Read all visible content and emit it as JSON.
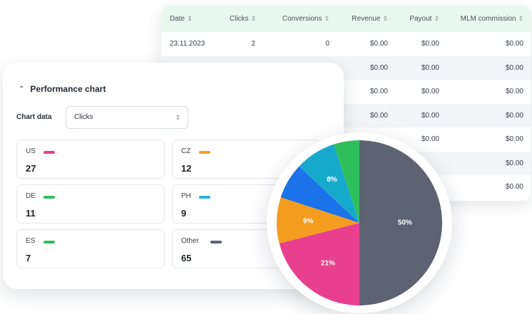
{
  "table": {
    "columns": [
      "Date",
      "Clicks",
      "Conversions",
      "Revenue",
      "Payout",
      "MLM commission"
    ],
    "rows": [
      [
        "23.11.2023",
        "2",
        "0",
        "$0.00",
        "$0.00",
        "$0.00"
      ],
      [
        "",
        "",
        "",
        "$0.00",
        "$0.00",
        "$0.00"
      ],
      [
        "",
        "",
        "",
        "$0.00",
        "$0.00",
        "$0.00"
      ],
      [
        "",
        "",
        "",
        "$0.00",
        "$0.00",
        "$0.00"
      ],
      [
        "",
        "",
        "",
        "",
        "$0.00",
        "$0.00"
      ],
      [
        "",
        "",
        "",
        "",
        "",
        "$0.00"
      ],
      [
        "",
        "",
        "",
        "",
        "",
        "$0.00"
      ]
    ],
    "sort_icon": "sort-updown-icon"
  },
  "performance": {
    "title": "Performance chart",
    "collapse_icon": "chevron-up-icon",
    "chart_data_label": "Chart data",
    "select_value": "Clicks",
    "select_icon": "updown-icon"
  },
  "countries": [
    {
      "name": "US",
      "value": "27",
      "color": "#e8408f"
    },
    {
      "name": "CZ",
      "value": "12",
      "color": "#f39c1f"
    },
    {
      "name": "DE",
      "value": "11",
      "color": "#2fbf5a"
    },
    {
      "name": "PH",
      "value": "9",
      "color": "#2bb1d6"
    },
    {
      "name": "ES",
      "value": "7",
      "color": "#2fbf5a"
    },
    {
      "name": "Other",
      "value": "65",
      "color": "#5e6373"
    }
  ],
  "chart_data": {
    "type": "pie",
    "slices": [
      {
        "label": "50%",
        "value": 50,
        "color": "#5e6373"
      },
      {
        "label": "21%",
        "value": 21,
        "color": "#e8408f"
      },
      {
        "label": "9%",
        "value": 9,
        "color": "#f39c1f"
      },
      {
        "label": "",
        "value": 7,
        "color": "#1a73e8"
      },
      {
        "label": "8%",
        "value": 8,
        "color": "#17a9cc"
      },
      {
        "label": "",
        "value": 5,
        "color": "#2fbf5a"
      }
    ]
  }
}
